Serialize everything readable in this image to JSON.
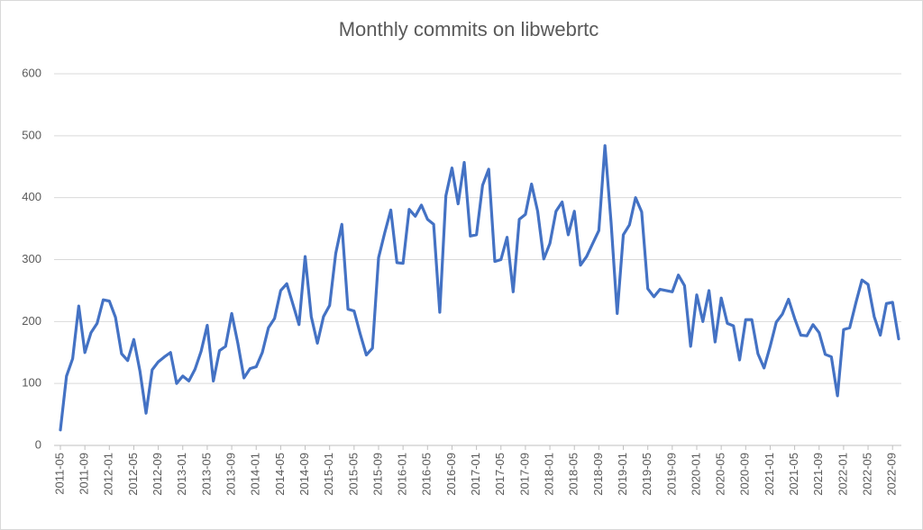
{
  "chart_data": {
    "type": "line",
    "title": "Monthly commits on libwebrtc",
    "categories": [
      "2011-05",
      null,
      null,
      null,
      "2011-09",
      null,
      null,
      null,
      "2012-01",
      null,
      null,
      null,
      "2012-05",
      null,
      null,
      null,
      "2012-09",
      null,
      null,
      null,
      "2013-01",
      null,
      null,
      null,
      "2013-05",
      null,
      null,
      null,
      "2013-09",
      null,
      null,
      null,
      "2014-01",
      null,
      null,
      null,
      "2014-05",
      null,
      null,
      null,
      "2014-09",
      null,
      null,
      null,
      "2015-01",
      null,
      null,
      null,
      "2015-05",
      null,
      null,
      null,
      "2015-09",
      null,
      null,
      null,
      "2016-01",
      null,
      null,
      null,
      "2016-05",
      null,
      null,
      null,
      "2016-09",
      null,
      null,
      null,
      "2017-01",
      null,
      null,
      null,
      "2017-05",
      null,
      null,
      null,
      "2017-09",
      null,
      null,
      null,
      "2018-01",
      null,
      null,
      null,
      "2018-05",
      null,
      null,
      null,
      "2018-09",
      null,
      null,
      null,
      "2019-01",
      null,
      null,
      null,
      "2019-05",
      null,
      null,
      null,
      "2019-09",
      null,
      null,
      null,
      "2020-01",
      null,
      null,
      null,
      "2020-05",
      null,
      null,
      null,
      "2020-09",
      null,
      null,
      null,
      "2021-01",
      null,
      null,
      null,
      "2021-05",
      null,
      null,
      null,
      "2021-09",
      null,
      null,
      null,
      "2022-01",
      null,
      null,
      null,
      "2022-05",
      null,
      null,
      null,
      "2022-09",
      null
    ],
    "values": [
      25,
      112,
      140,
      225,
      150,
      182,
      197,
      235,
      233,
      207,
      148,
      137,
      171,
      120,
      52,
      122,
      135,
      143,
      150,
      100,
      112,
      104,
      123,
      152,
      194,
      104,
      153,
      160,
      213,
      165,
      109,
      124,
      127,
      150,
      190,
      205,
      250,
      261,
      228,
      195,
      305,
      208,
      165,
      208,
      226,
      310,
      357,
      220,
      217,
      180,
      146,
      157,
      303,
      343,
      380,
      295,
      294,
      381,
      370,
      388,
      365,
      357,
      215,
      403,
      448,
      390,
      457,
      338,
      340,
      420,
      446,
      297,
      300,
      336,
      248,
      365,
      373,
      422,
      378,
      301,
      326,
      378,
      393,
      340,
      378,
      291,
      305,
      326,
      347,
      484,
      360,
      213,
      340,
      356,
      400,
      377,
      253,
      240,
      252,
      250,
      248,
      275,
      258,
      160,
      243,
      200,
      250,
      167,
      238,
      197,
      193,
      138,
      203,
      203,
      148,
      125,
      160,
      199,
      212,
      236,
      205,
      178,
      177,
      195,
      182,
      147,
      143,
      80,
      187,
      190,
      230,
      267,
      260,
      208,
      178,
      229,
      231,
      172
    ],
    "color": "#4472c4",
    "ylim": [
      0,
      600
    ],
    "yticks": [
      0,
      100,
      200,
      300,
      400,
      500,
      600
    ],
    "grid": true
  }
}
